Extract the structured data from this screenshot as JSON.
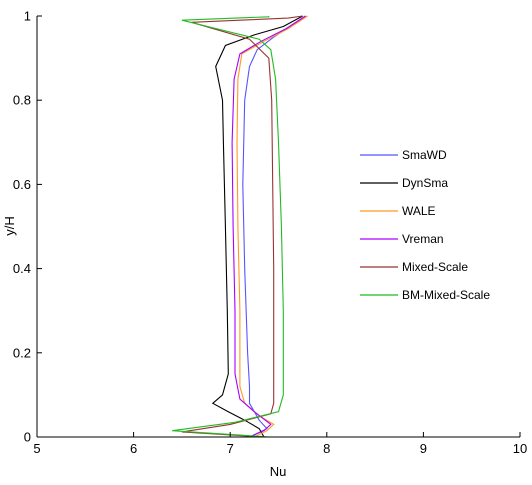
{
  "chart_data": {
    "type": "line",
    "xlabel": "Nu",
    "ylabel": "y/H",
    "xlim": [
      5,
      10
    ],
    "ylim": [
      0,
      1
    ],
    "xticks": [
      "5",
      "6",
      "7",
      "8",
      "9",
      "10"
    ],
    "yticks": [
      "0",
      "0.2",
      "0.4",
      "0.6",
      "0.8",
      "1"
    ],
    "grid": false,
    "legend_position": "right",
    "series": [
      {
        "name": "SmaWD",
        "color": "#5555ff",
        "points": [
          [
            7.2,
            0.0
          ],
          [
            7.38,
            0.02
          ],
          [
            7.3,
            0.04
          ],
          [
            7.25,
            0.06
          ],
          [
            7.2,
            0.08
          ],
          [
            7.2,
            0.12
          ],
          [
            7.18,
            0.2
          ],
          [
            7.15,
            0.4
          ],
          [
            7.13,
            0.6
          ],
          [
            7.15,
            0.8
          ],
          [
            7.2,
            0.88
          ],
          [
            7.28,
            0.92
          ],
          [
            7.45,
            0.95
          ],
          [
            7.65,
            0.98
          ],
          [
            7.78,
            1.0
          ]
        ]
      },
      {
        "name": "DynSma",
        "color": "#000000",
        "points": [
          [
            7.35,
            0.0
          ],
          [
            7.3,
            0.02
          ],
          [
            7.15,
            0.04
          ],
          [
            6.98,
            0.06
          ],
          [
            6.82,
            0.08
          ],
          [
            6.92,
            0.1
          ],
          [
            6.98,
            0.15
          ],
          [
            6.97,
            0.3
          ],
          [
            6.95,
            0.5
          ],
          [
            6.93,
            0.7
          ],
          [
            6.92,
            0.8
          ],
          [
            6.85,
            0.88
          ],
          [
            6.95,
            0.93
          ],
          [
            7.25,
            0.955
          ],
          [
            7.55,
            0.975
          ],
          [
            7.75,
            1.0
          ]
        ]
      },
      {
        "name": "WALE",
        "color": "#ff9922",
        "points": [
          [
            7.25,
            0.0
          ],
          [
            7.38,
            0.015
          ],
          [
            7.45,
            0.03
          ],
          [
            7.3,
            0.05
          ],
          [
            7.15,
            0.08
          ],
          [
            7.1,
            0.12
          ],
          [
            7.1,
            0.3
          ],
          [
            7.08,
            0.5
          ],
          [
            7.07,
            0.7
          ],
          [
            7.08,
            0.85
          ],
          [
            7.12,
            0.91
          ],
          [
            7.35,
            0.94
          ],
          [
            7.6,
            0.97
          ],
          [
            7.8,
            1.0
          ]
        ]
      },
      {
        "name": "Vreman",
        "color": "#aa00ff",
        "points": [
          [
            7.2,
            0.0
          ],
          [
            7.35,
            0.015
          ],
          [
            7.42,
            0.03
          ],
          [
            7.25,
            0.06
          ],
          [
            7.1,
            0.09
          ],
          [
            7.05,
            0.15
          ],
          [
            7.05,
            0.3
          ],
          [
            7.03,
            0.5
          ],
          [
            7.02,
            0.7
          ],
          [
            7.04,
            0.85
          ],
          [
            7.1,
            0.91
          ],
          [
            7.32,
            0.94
          ],
          [
            7.58,
            0.97
          ],
          [
            7.78,
            1.0
          ]
        ]
      },
      {
        "name": "Mixed-Scale",
        "color": "#993333",
        "points": [
          [
            7.35,
            0.0
          ],
          [
            6.5,
            0.012
          ],
          [
            7.0,
            0.03
          ],
          [
            7.42,
            0.055
          ],
          [
            7.45,
            0.08
          ],
          [
            7.45,
            0.2
          ],
          [
            7.45,
            0.4
          ],
          [
            7.44,
            0.6
          ],
          [
            7.43,
            0.8
          ],
          [
            7.4,
            0.9
          ],
          [
            7.2,
            0.945
          ],
          [
            6.6,
            0.985
          ],
          [
            7.1,
            0.99
          ],
          [
            7.6,
            0.995
          ],
          [
            7.75,
            1.0
          ]
        ]
      },
      {
        "name": "BM-Mixed-Scale",
        "color": "#22bb22",
        "points": [
          [
            7.4,
            0.0
          ],
          [
            6.4,
            0.015
          ],
          [
            7.05,
            0.035
          ],
          [
            7.5,
            0.06
          ],
          [
            7.55,
            0.1
          ],
          [
            7.55,
            0.3
          ],
          [
            7.53,
            0.5
          ],
          [
            7.5,
            0.7
          ],
          [
            7.47,
            0.85
          ],
          [
            7.42,
            0.92
          ],
          [
            7.3,
            0.945
          ],
          [
            6.5,
            0.99
          ],
          [
            7.4,
            0.998
          ],
          [
            7.4,
            1.0
          ]
        ]
      }
    ]
  }
}
